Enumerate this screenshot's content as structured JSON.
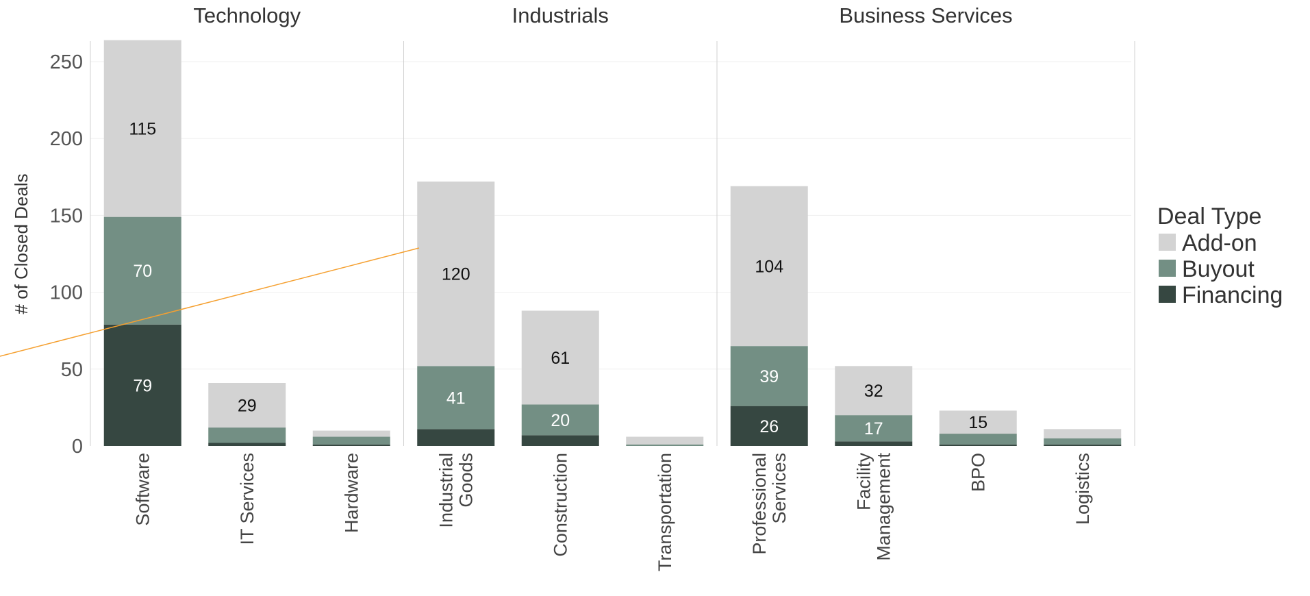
{
  "chart_data": {
    "type": "bar",
    "stacked": true,
    "ylabel": "# of Closed Deals",
    "ylim": [
      0,
      270
    ],
    "yticks": [
      0,
      50,
      100,
      150,
      200,
      250
    ],
    "grid": true,
    "legend": {
      "title": "Deal Type",
      "position": "right",
      "entries": [
        "Add-on",
        "Buyout",
        "Financing"
      ]
    },
    "colors": {
      "Add-on": "#d3d3d3",
      "Buyout": "#738f84",
      "Financing": "#364741"
    },
    "groups": [
      {
        "name": "Technology",
        "categories": [
          {
            "label": [
              "Software"
            ],
            "Financing": 79,
            "Buyout": 70,
            "Add-on": 115,
            "labels": {
              "Financing": "79",
              "Buyout": "70",
              "Add-on": "115"
            }
          },
          {
            "label": [
              "IT Services"
            ],
            "Financing": 2,
            "Buyout": 10,
            "Add-on": 29,
            "labels": {
              "Add-on": "29"
            }
          },
          {
            "label": [
              "Hardware"
            ],
            "Financing": 1,
            "Buyout": 5,
            "Add-on": 4,
            "labels": {}
          }
        ]
      },
      {
        "name": "Industrials",
        "categories": [
          {
            "label": [
              "Industrial",
              "Goods"
            ],
            "Financing": 11,
            "Buyout": 41,
            "Add-on": 120,
            "labels": {
              "Buyout": "41",
              "Add-on": "120"
            }
          },
          {
            "label": [
              "Construction"
            ],
            "Financing": 7,
            "Buyout": 20,
            "Add-on": 61,
            "labels": {
              "Buyout": "20",
              "Add-on": "61"
            }
          },
          {
            "label": [
              "Transportation"
            ],
            "Financing": 0,
            "Buyout": 1,
            "Add-on": 5,
            "labels": {}
          }
        ]
      },
      {
        "name": "Business Services",
        "categories": [
          {
            "label": [
              "Professional",
              "Services"
            ],
            "Financing": 26,
            "Buyout": 39,
            "Add-on": 104,
            "labels": {
              "Financing": "26",
              "Buyout": "39",
              "Add-on": "104"
            }
          },
          {
            "label": [
              "Facility",
              "Management"
            ],
            "Financing": 3,
            "Buyout": 17,
            "Add-on": 32,
            "labels": {
              "Buyout": "17",
              "Add-on": "32"
            }
          },
          {
            "label": [
              "BPO"
            ],
            "Financing": 1,
            "Buyout": 7,
            "Add-on": 15,
            "labels": {
              "Add-on": "15"
            }
          },
          {
            "label": [
              "Logistics"
            ],
            "Financing": 1,
            "Buyout": 4,
            "Add-on": 6,
            "labels": {}
          }
        ]
      }
    ]
  },
  "annotation": {
    "type": "line",
    "color": "#f5a030"
  }
}
